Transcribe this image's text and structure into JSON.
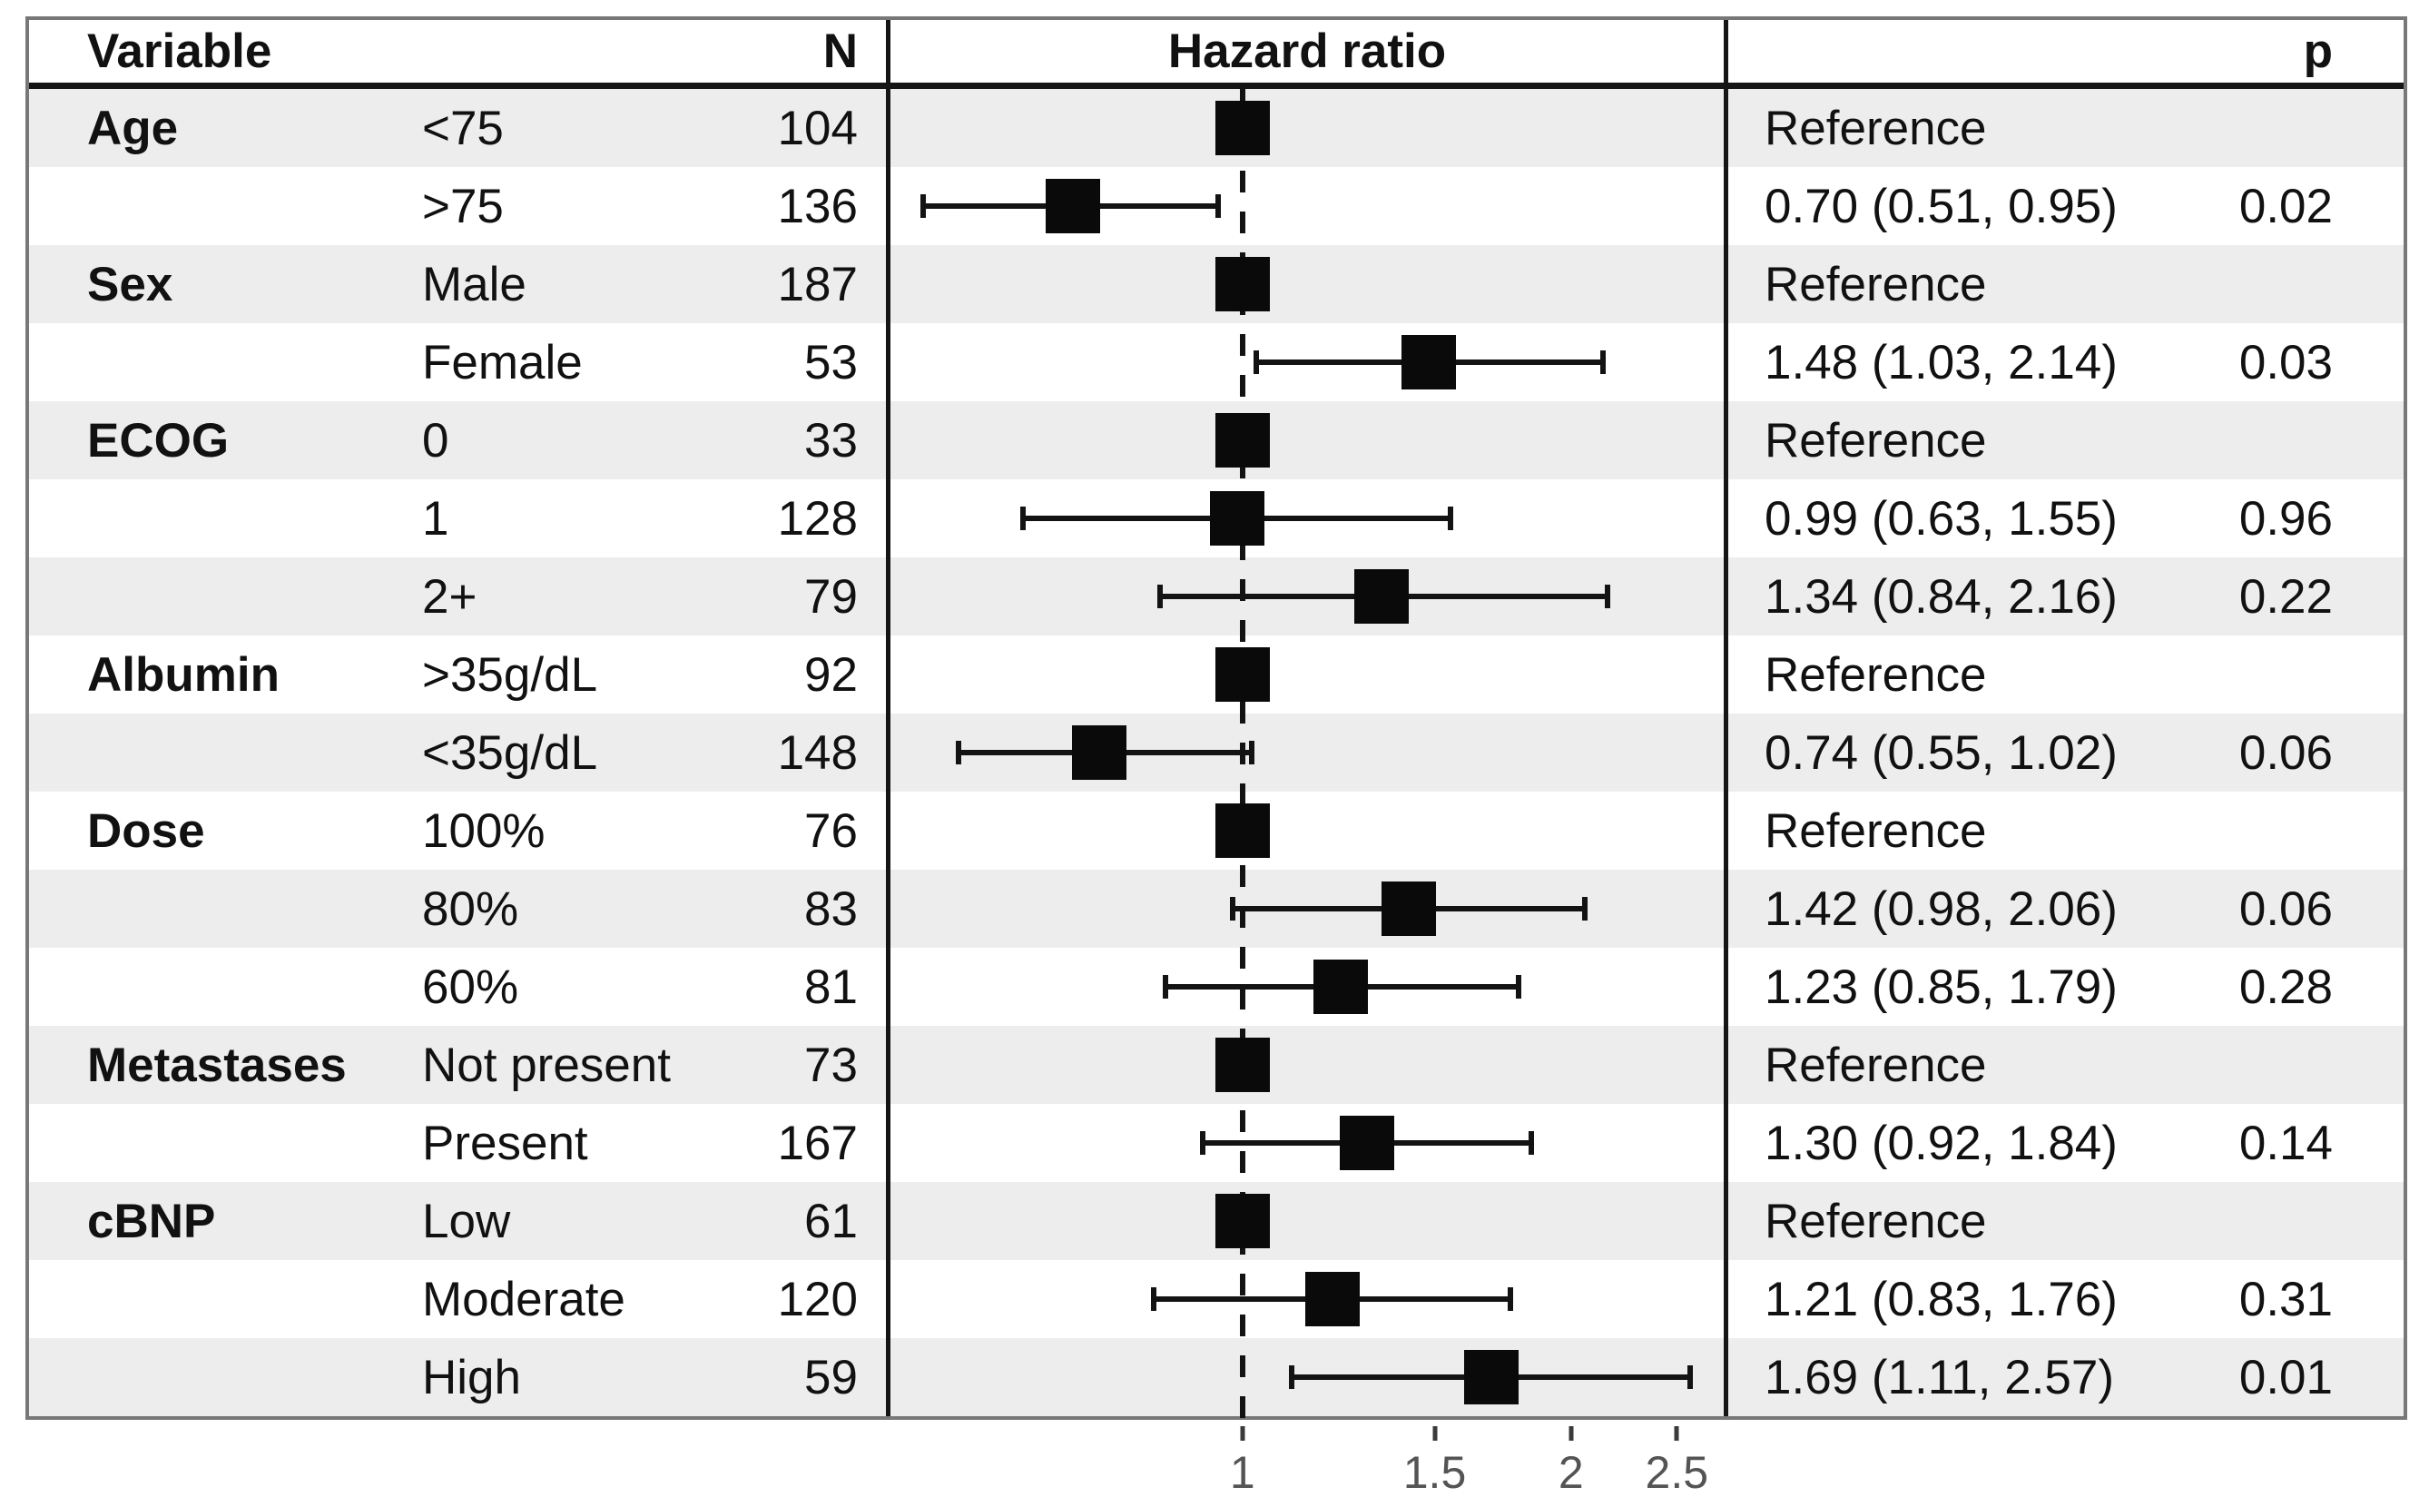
{
  "figure": {
    "headers": {
      "variable": "Variable",
      "n": "N",
      "hazard_ratio": "Hazard ratio",
      "p": "p"
    }
  },
  "colors": {
    "stripe": "#ededed",
    "marker": "#0a0a0a",
    "line": "#131313",
    "outer_border": "#787878",
    "tick_label": "#545454"
  },
  "chart_data": {
    "type": "forest",
    "title": "Hazard ratio",
    "x_scale": "log",
    "xlim": [
      0.476,
      2.76
    ],
    "reference_line": 1,
    "x_ticks": [
      {
        "value": 1,
        "label": "1"
      },
      {
        "value": 1.5,
        "label": "1.5"
      },
      {
        "value": 2,
        "label": "2"
      },
      {
        "value": 2.5,
        "label": "2.5"
      }
    ],
    "rows": [
      {
        "group": "Age",
        "level": "<75",
        "n": 104,
        "hr": 1.0,
        "ci_low": null,
        "ci_high": null,
        "estimate_label": "Reference",
        "p": "",
        "is_reference": true
      },
      {
        "group": "",
        "level": ">75",
        "n": 136,
        "hr": 0.7,
        "ci_low": 0.51,
        "ci_high": 0.95,
        "estimate_label": "0.70 (0.51, 0.95)",
        "p": "0.02",
        "is_reference": false
      },
      {
        "group": "Sex",
        "level": "Male",
        "n": 187,
        "hr": 1.0,
        "ci_low": null,
        "ci_high": null,
        "estimate_label": "Reference",
        "p": "",
        "is_reference": true
      },
      {
        "group": "",
        "level": "Female",
        "n": 53,
        "hr": 1.48,
        "ci_low": 1.03,
        "ci_high": 2.14,
        "estimate_label": "1.48 (1.03, 2.14)",
        "p": "0.03",
        "is_reference": false
      },
      {
        "group": "ECOG",
        "level": "0",
        "n": 33,
        "hr": 1.0,
        "ci_low": null,
        "ci_high": null,
        "estimate_label": "Reference",
        "p": "",
        "is_reference": true
      },
      {
        "group": "",
        "level": "1",
        "n": 128,
        "hr": 0.99,
        "ci_low": 0.63,
        "ci_high": 1.55,
        "estimate_label": "0.99 (0.63, 1.55)",
        "p": "0.96",
        "is_reference": false
      },
      {
        "group": "",
        "level": "2+",
        "n": 79,
        "hr": 1.34,
        "ci_low": 0.84,
        "ci_high": 2.16,
        "estimate_label": "1.34 (0.84, 2.16)",
        "p": "0.22",
        "is_reference": false
      },
      {
        "group": "Albumin",
        "level": ">35g/dL",
        "n": 92,
        "hr": 1.0,
        "ci_low": null,
        "ci_high": null,
        "estimate_label": "Reference",
        "p": "",
        "is_reference": true
      },
      {
        "group": "",
        "level": "<35g/dL",
        "n": 148,
        "hr": 0.74,
        "ci_low": 0.55,
        "ci_high": 1.02,
        "estimate_label": "0.74 (0.55, 1.02)",
        "p": "0.06",
        "is_reference": false
      },
      {
        "group": "Dose",
        "level": "100%",
        "n": 76,
        "hr": 1.0,
        "ci_low": null,
        "ci_high": null,
        "estimate_label": "Reference",
        "p": "",
        "is_reference": true
      },
      {
        "group": "",
        "level": "80%",
        "n": 83,
        "hr": 1.42,
        "ci_low": 0.98,
        "ci_high": 2.06,
        "estimate_label": "1.42 (0.98, 2.06)",
        "p": "0.06",
        "is_reference": false
      },
      {
        "group": "",
        "level": "60%",
        "n": 81,
        "hr": 1.23,
        "ci_low": 0.85,
        "ci_high": 1.79,
        "estimate_label": "1.23 (0.85, 1.79)",
        "p": "0.28",
        "is_reference": false
      },
      {
        "group": "Metastases",
        "level": "Not present",
        "n": 73,
        "hr": 1.0,
        "ci_low": null,
        "ci_high": null,
        "estimate_label": "Reference",
        "p": "",
        "is_reference": true
      },
      {
        "group": "",
        "level": "Present",
        "n": 167,
        "hr": 1.3,
        "ci_low": 0.92,
        "ci_high": 1.84,
        "estimate_label": "1.30 (0.92, 1.84)",
        "p": "0.14",
        "is_reference": false
      },
      {
        "group": "cBNP",
        "level": "Low",
        "n": 61,
        "hr": 1.0,
        "ci_low": null,
        "ci_high": null,
        "estimate_label": "Reference",
        "p": "",
        "is_reference": true
      },
      {
        "group": "",
        "level": "Moderate",
        "n": 120,
        "hr": 1.21,
        "ci_low": 0.83,
        "ci_high": 1.76,
        "estimate_label": "1.21 (0.83, 1.76)",
        "p": "0.31",
        "is_reference": false
      },
      {
        "group": "",
        "level": "High",
        "n": 59,
        "hr": 1.69,
        "ci_low": 1.11,
        "ci_high": 2.57,
        "estimate_label": "1.69 (1.11, 2.57)",
        "p": "0.01",
        "is_reference": false
      }
    ]
  }
}
